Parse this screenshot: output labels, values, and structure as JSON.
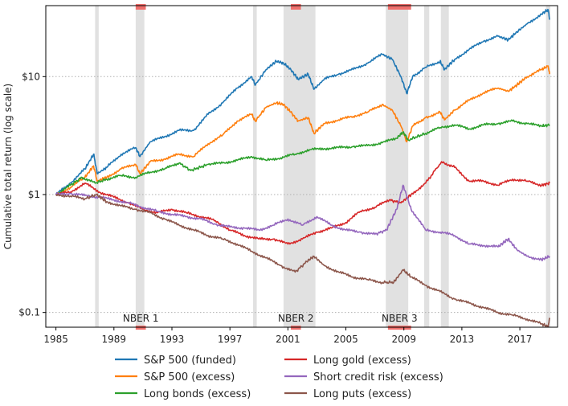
{
  "chart_data": {
    "type": "line",
    "title": "",
    "xlabel": "",
    "ylabel": "Cumulative total return (log scale)",
    "y_scale": "log",
    "xlim": [
      1984.3,
      2019.6
    ],
    "ylim": [
      0.075,
      40
    ],
    "grid": "horizontal dotted",
    "legend_position": "bottom, two columns",
    "x_ticks": [
      {
        "value": 1985,
        "label": "1985"
      },
      {
        "value": 1989,
        "label": "1989"
      },
      {
        "value": 1993,
        "label": "1993"
      },
      {
        "value": 1997,
        "label": "1997"
      },
      {
        "value": 2001,
        "label": "2001"
      },
      {
        "value": 2005,
        "label": "2005"
      },
      {
        "value": 2009,
        "label": "2009"
      },
      {
        "value": 2013,
        "label": "2013"
      },
      {
        "value": 2017,
        "label": "2017"
      }
    ],
    "y_ticks": [
      {
        "value": 0.1,
        "label": "$0.1"
      },
      {
        "value": 1,
        "label": "$1"
      },
      {
        "value": 10,
        "label": "$10"
      }
    ],
    "shaded_periods": [
      [
        1987.7,
        1987.95
      ],
      [
        1990.5,
        1991.1
      ],
      [
        1998.6,
        1998.85
      ],
      [
        2000.7,
        2002.9
      ],
      [
        2007.75,
        2009.3
      ],
      [
        2010.4,
        2010.75
      ],
      [
        2011.55,
        2012.1
      ],
      [
        2018.8,
        2019.1
      ]
    ],
    "recessions": [
      {
        "label": "NBER 1",
        "start": 1990.5,
        "end": 1991.2
      },
      {
        "label": "NBER 2",
        "start": 2001.2,
        "end": 2001.9
      },
      {
        "label": "NBER 3",
        "start": 2007.9,
        "end": 2009.5
      }
    ],
    "series": [
      {
        "name": "S&P 500 (funded)",
        "color": "#1f77b4",
        "points": [
          [
            1985,
            1.0
          ],
          [
            1986,
            1.25
          ],
          [
            1987,
            1.65
          ],
          [
            1987.6,
            2.2
          ],
          [
            1987.85,
            1.5
          ],
          [
            1988.5,
            1.7
          ],
          [
            1989.5,
            2.2
          ],
          [
            1990.5,
            2.5
          ],
          [
            1990.8,
            2.1
          ],
          [
            1991.5,
            2.8
          ],
          [
            1992.5,
            3.1
          ],
          [
            1993.5,
            3.5
          ],
          [
            1994.5,
            3.5
          ],
          [
            1995.5,
            4.8
          ],
          [
            1996.5,
            6.0
          ],
          [
            1997.5,
            8.0
          ],
          [
            1998.5,
            10.0
          ],
          [
            1998.75,
            8.5
          ],
          [
            1999.5,
            11.5
          ],
          [
            2000.2,
            13.5
          ],
          [
            2000.7,
            13.0
          ],
          [
            2001.2,
            11.5
          ],
          [
            2001.7,
            9.5
          ],
          [
            2002.4,
            10.5
          ],
          [
            2002.8,
            7.8
          ],
          [
            2003.5,
            9.5
          ],
          [
            2004.5,
            10.5
          ],
          [
            2005.5,
            11.5
          ],
          [
            2006.5,
            13.0
          ],
          [
            2007.5,
            15.5
          ],
          [
            2008.2,
            14.0
          ],
          [
            2008.8,
            10.0
          ],
          [
            2009.2,
            7.2
          ],
          [
            2009.6,
            10.0
          ],
          [
            2010.5,
            12.0
          ],
          [
            2011.5,
            13.5
          ],
          [
            2011.8,
            11.5
          ],
          [
            2012.5,
            14.0
          ],
          [
            2013.5,
            17.0
          ],
          [
            2014.5,
            20.0
          ],
          [
            2015.5,
            22.0
          ],
          [
            2016.2,
            20.5
          ],
          [
            2016.8,
            24.0
          ],
          [
            2017.5,
            28.0
          ],
          [
            2018.5,
            34.0
          ],
          [
            2018.95,
            37.0
          ],
          [
            2019.05,
            31.0
          ]
        ]
      },
      {
        "name": "S&P 500 (excess)",
        "color": "#ff7f0e",
        "points": [
          [
            1985,
            1.0
          ],
          [
            1986,
            1.15
          ],
          [
            1987,
            1.4
          ],
          [
            1987.6,
            1.75
          ],
          [
            1987.85,
            1.3
          ],
          [
            1988.5,
            1.4
          ],
          [
            1989.5,
            1.65
          ],
          [
            1990.5,
            1.8
          ],
          [
            1990.8,
            1.5
          ],
          [
            1991.5,
            1.9
          ],
          [
            1992.5,
            2.0
          ],
          [
            1993.5,
            2.2
          ],
          [
            1994.5,
            2.1
          ],
          [
            1995.5,
            2.7
          ],
          [
            1996.5,
            3.2
          ],
          [
            1997.5,
            4.2
          ],
          [
            1998.5,
            4.8
          ],
          [
            1998.75,
            4.2
          ],
          [
            1999.5,
            5.5
          ],
          [
            2000.2,
            6.0
          ],
          [
            2000.7,
            5.8
          ],
          [
            2001.2,
            5.0
          ],
          [
            2001.7,
            4.2
          ],
          [
            2002.4,
            4.5
          ],
          [
            2002.8,
            3.3
          ],
          [
            2003.5,
            4.0
          ],
          [
            2004.5,
            4.3
          ],
          [
            2005.5,
            4.6
          ],
          [
            2006.5,
            5.0
          ],
          [
            2007.5,
            5.8
          ],
          [
            2008.2,
            5.2
          ],
          [
            2008.8,
            3.8
          ],
          [
            2009.2,
            2.8
          ],
          [
            2009.6,
            3.8
          ],
          [
            2010.5,
            4.5
          ],
          [
            2011.5,
            5.0
          ],
          [
            2011.8,
            4.3
          ],
          [
            2012.5,
            5.2
          ],
          [
            2013.5,
            6.3
          ],
          [
            2014.5,
            7.3
          ],
          [
            2015.5,
            8.0
          ],
          [
            2016.2,
            7.5
          ],
          [
            2016.8,
            8.5
          ],
          [
            2017.5,
            10.0
          ],
          [
            2018.5,
            11.5
          ],
          [
            2018.95,
            12.3
          ],
          [
            2019.05,
            10.5
          ]
        ]
      },
      {
        "name": "Long bonds (excess)",
        "color": "#2ca02c",
        "points": [
          [
            1985,
            1.0
          ],
          [
            1986,
            1.2
          ],
          [
            1986.8,
            1.4
          ],
          [
            1987.7,
            1.25
          ],
          [
            1988.5,
            1.35
          ],
          [
            1989.5,
            1.45
          ],
          [
            1990.5,
            1.4
          ],
          [
            1991.5,
            1.55
          ],
          [
            1992.5,
            1.65
          ],
          [
            1993.5,
            1.85
          ],
          [
            1994.3,
            1.6
          ],
          [
            1995.5,
            1.8
          ],
          [
            1996.5,
            1.85
          ],
          [
            1997.5,
            1.95
          ],
          [
            1998.5,
            2.1
          ],
          [
            1999.5,
            1.95
          ],
          [
            2000.5,
            2.05
          ],
          [
            2001.5,
            2.2
          ],
          [
            2002.5,
            2.4
          ],
          [
            2003.5,
            2.45
          ],
          [
            2004.5,
            2.5
          ],
          [
            2005.5,
            2.55
          ],
          [
            2006.5,
            2.6
          ],
          [
            2007.5,
            2.75
          ],
          [
            2008.5,
            3.0
          ],
          [
            2008.95,
            3.4
          ],
          [
            2009.3,
            2.9
          ],
          [
            2010.5,
            3.3
          ],
          [
            2011.5,
            3.7
          ],
          [
            2012.5,
            3.9
          ],
          [
            2013.5,
            3.6
          ],
          [
            2014.5,
            3.9
          ],
          [
            2015.5,
            4.0
          ],
          [
            2016.5,
            4.2
          ],
          [
            2017.5,
            4.0
          ],
          [
            2018.5,
            3.8
          ],
          [
            2019.05,
            3.9
          ]
        ]
      },
      {
        "name": "Long gold (excess)",
        "color": "#d62728",
        "points": [
          [
            1985,
            1.0
          ],
          [
            1986,
            1.05
          ],
          [
            1987,
            1.25
          ],
          [
            1988,
            1.05
          ],
          [
            1989,
            0.95
          ],
          [
            1990,
            0.85
          ],
          [
            1991,
            0.75
          ],
          [
            1992,
            0.7
          ],
          [
            1993,
            0.75
          ],
          [
            1994,
            0.7
          ],
          [
            1995,
            0.65
          ],
          [
            1996,
            0.6
          ],
          [
            1997,
            0.5
          ],
          [
            1998,
            0.45
          ],
          [
            1999,
            0.42
          ],
          [
            2000,
            0.42
          ],
          [
            2001,
            0.38
          ],
          [
            2002,
            0.42
          ],
          [
            2003,
            0.48
          ],
          [
            2004,
            0.52
          ],
          [
            2005,
            0.58
          ],
          [
            2006,
            0.72
          ],
          [
            2007,
            0.78
          ],
          [
            2008,
            0.9
          ],
          [
            2008.8,
            0.85
          ],
          [
            2009.5,
            1.0
          ],
          [
            2010.5,
            1.25
          ],
          [
            2011.6,
            1.9
          ],
          [
            2012.5,
            1.7
          ],
          [
            2013.5,
            1.3
          ],
          [
            2014.5,
            1.3
          ],
          [
            2015.5,
            1.2
          ],
          [
            2016.5,
            1.35
          ],
          [
            2017.5,
            1.3
          ],
          [
            2018.5,
            1.2
          ],
          [
            2019.05,
            1.25
          ]
        ]
      },
      {
        "name": "Short credit risk (excess)",
        "color": "#9467bd",
        "points": [
          [
            1985,
            1.0
          ],
          [
            1986,
            1.02
          ],
          [
            1987,
            0.98
          ],
          [
            1988,
            0.95
          ],
          [
            1989,
            0.9
          ],
          [
            1990,
            0.85
          ],
          [
            1991,
            0.78
          ],
          [
            1992,
            0.72
          ],
          [
            1993,
            0.68
          ],
          [
            1994,
            0.65
          ],
          [
            1995,
            0.62
          ],
          [
            1996,
            0.56
          ],
          [
            1997,
            0.53
          ],
          [
            1998,
            0.52
          ],
          [
            1999,
            0.5
          ],
          [
            2000,
            0.55
          ],
          [
            2001,
            0.62
          ],
          [
            2002,
            0.55
          ],
          [
            2003,
            0.65
          ],
          [
            2004,
            0.55
          ],
          [
            2005,
            0.5
          ],
          [
            2006,
            0.48
          ],
          [
            2007,
            0.46
          ],
          [
            2007.8,
            0.5
          ],
          [
            2008.5,
            0.75
          ],
          [
            2008.95,
            1.2
          ],
          [
            2009.5,
            0.75
          ],
          [
            2010.5,
            0.5
          ],
          [
            2011.5,
            0.48
          ],
          [
            2012.5,
            0.45
          ],
          [
            2013.5,
            0.38
          ],
          [
            2014.5,
            0.37
          ],
          [
            2015.5,
            0.36
          ],
          [
            2016.2,
            0.42
          ],
          [
            2016.8,
            0.34
          ],
          [
            2017.5,
            0.3
          ],
          [
            2018.5,
            0.28
          ],
          [
            2019.05,
            0.3
          ]
        ]
      },
      {
        "name": "Long puts (excess)",
        "color": "#8c564b",
        "points": [
          [
            1985,
            1.0
          ],
          [
            1986,
            0.97
          ],
          [
            1987,
            0.92
          ],
          [
            1987.8,
            1.0
          ],
          [
            1988.5,
            0.87
          ],
          [
            1989.5,
            0.8
          ],
          [
            1990.5,
            0.75
          ],
          [
            1991.5,
            0.7
          ],
          [
            1992.5,
            0.62
          ],
          [
            1993.5,
            0.55
          ],
          [
            1994.5,
            0.5
          ],
          [
            1995.5,
            0.45
          ],
          [
            1996.5,
            0.42
          ],
          [
            1997.5,
            0.38
          ],
          [
            1998.5,
            0.33
          ],
          [
            1999.5,
            0.29
          ],
          [
            2000.5,
            0.25
          ],
          [
            2001.5,
            0.22
          ],
          [
            2002.3,
            0.27
          ],
          [
            2002.8,
            0.3
          ],
          [
            2003.5,
            0.25
          ],
          [
            2004.5,
            0.22
          ],
          [
            2005.5,
            0.2
          ],
          [
            2006.5,
            0.19
          ],
          [
            2007.5,
            0.18
          ],
          [
            2008.3,
            0.18
          ],
          [
            2008.95,
            0.23
          ],
          [
            2009.5,
            0.2
          ],
          [
            2010.5,
            0.17
          ],
          [
            2011.5,
            0.15
          ],
          [
            2012.5,
            0.13
          ],
          [
            2013.5,
            0.12
          ],
          [
            2014.5,
            0.11
          ],
          [
            2015.5,
            0.1
          ],
          [
            2016.5,
            0.095
          ],
          [
            2017.5,
            0.088
          ],
          [
            2018.5,
            0.08
          ],
          [
            2018.95,
            0.076
          ],
          [
            2019.05,
            0.088
          ]
        ]
      }
    ]
  }
}
